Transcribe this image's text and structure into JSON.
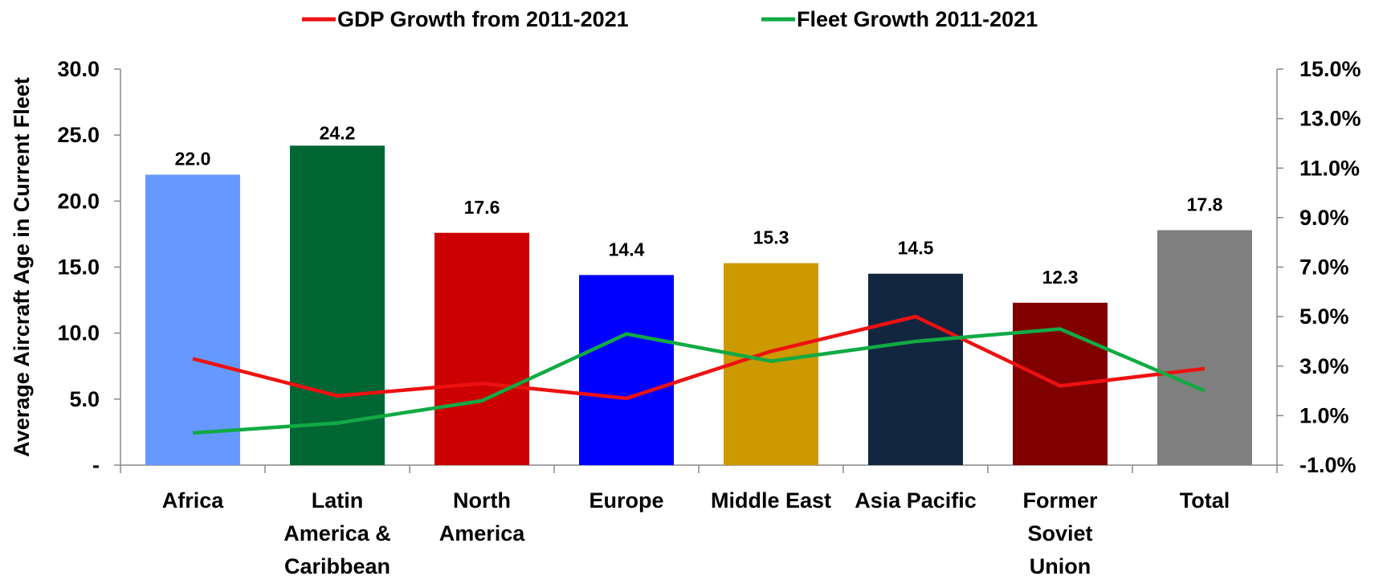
{
  "chart_data": {
    "type": "bar",
    "categories": [
      [
        "Africa"
      ],
      [
        "Latin",
        "America &",
        "Caribbean"
      ],
      [
        "North",
        "America"
      ],
      [
        "Europe"
      ],
      [
        "Middle East"
      ],
      [
        "Asia Pacific"
      ],
      [
        "Former",
        "Soviet",
        "Union"
      ],
      [
        "Total"
      ]
    ],
    "bars": {
      "values": [
        22.0,
        24.2,
        17.6,
        14.4,
        15.3,
        14.5,
        12.3,
        17.8
      ],
      "labels": [
        "22.0",
        "24.2",
        "17.6",
        "14.4",
        "15.3",
        "14.5",
        "12.3",
        "17.8"
      ],
      "colors": [
        "#6699FF",
        "#006633",
        "#CC0000",
        "#0000FF",
        "#CC9900",
        "#132640",
        "#800000",
        "#808080"
      ]
    },
    "lines": [
      {
        "name": "GDP Growth from 2011-2021",
        "color": "#EE1111",
        "values": [
          3.3,
          1.8,
          2.3,
          1.7,
          3.6,
          5.0,
          2.2,
          2.9
        ]
      },
      {
        "name": "Fleet Growth 2011-2021",
        "color": "#11AA44",
        "values": [
          0.3,
          0.7,
          1.6,
          4.3,
          3.2,
          4.0,
          4.5,
          2.0
        ]
      }
    ],
    "ylabel": "Average Aircraft Age in Current Fleet",
    "y_left": {
      "min": 0,
      "max": 30,
      "ticks": [
        "-",
        "5.0",
        "10.0",
        "15.0",
        "20.0",
        "25.0",
        "30.0"
      ]
    },
    "y_right": {
      "min": -1,
      "max": 15,
      "ticks": [
        "-1.0%",
        "1.0%",
        "3.0%",
        "5.0%",
        "7.0%",
        "9.0%",
        "11.0%",
        "13.0%",
        "15.0%"
      ]
    },
    "legend_position": "top",
    "grid": false
  }
}
